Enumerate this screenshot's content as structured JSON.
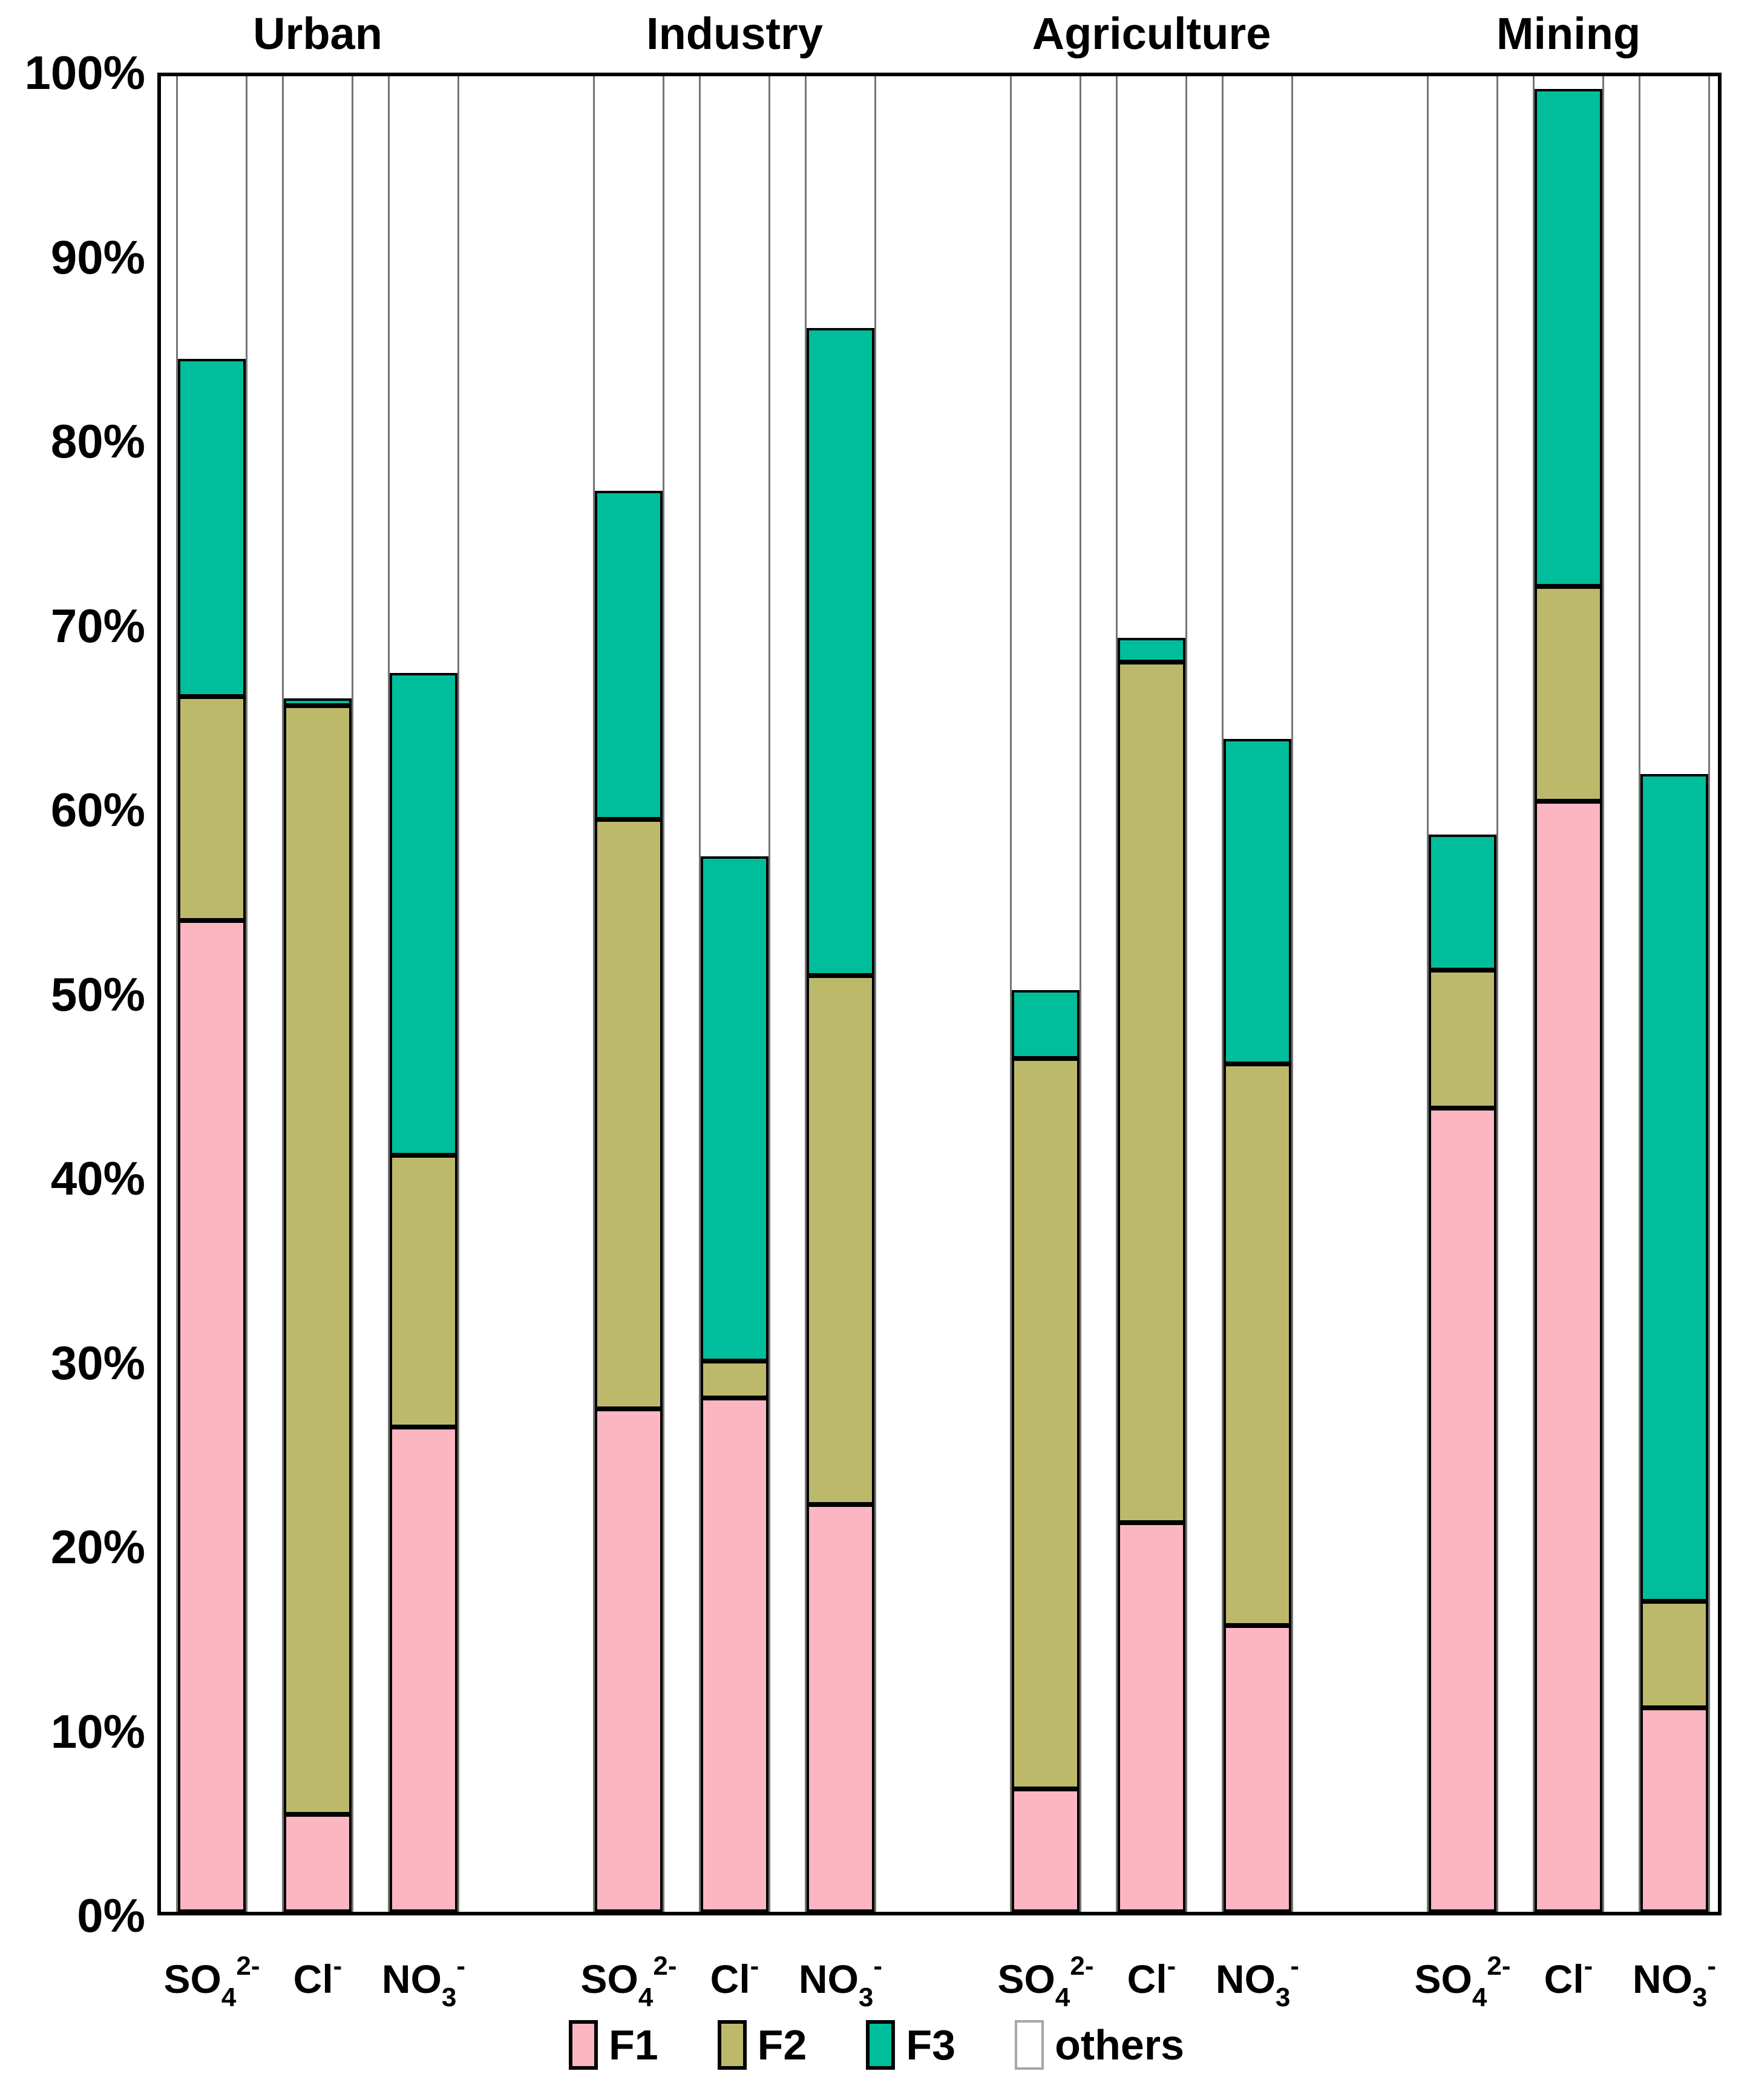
{
  "chart_data": {
    "type": "bar",
    "stacked": true,
    "unit": "%",
    "ylim": [
      0,
      100
    ],
    "grid": false,
    "legend_position": "bottom",
    "y_tick_labels": [
      "100%",
      "90%",
      "80%",
      "70%",
      "60%",
      "50%",
      "40%",
      "30%",
      "20%",
      "10%",
      "0%"
    ],
    "groups": [
      "Urban",
      "Industry",
      "Agriculture",
      "Mining"
    ],
    "x_categories": [
      {
        "main": "SO",
        "sub": "4",
        "sup": "2-"
      },
      {
        "main": "Cl",
        "sub": "",
        "sup": "-"
      },
      {
        "main": "NO",
        "sub": "3",
        "sup": "-"
      }
    ],
    "series_names": [
      "F1",
      "F2",
      "F3",
      "others"
    ],
    "series_colors": {
      "F1": "#FBB6C2",
      "F2": "#BDB96B",
      "F3": "#00BE9B",
      "others": "#FFFFFF"
    },
    "bars": [
      {
        "group": "Urban",
        "ion": "SO4 2-",
        "F1": 54.0,
        "F2": 12.2,
        "F3": 18.4,
        "others": 15.4
      },
      {
        "group": "Urban",
        "ion": "Cl-",
        "F1": 5.3,
        "F2": 60.4,
        "F3": 0.4,
        "others": 33.9
      },
      {
        "group": "Urban",
        "ion": "NO3 -",
        "F1": 26.4,
        "F2": 14.8,
        "F3": 26.3,
        "others": 32.5
      },
      {
        "group": "Industry",
        "ion": "SO4 2-",
        "F1": 27.4,
        "F2": 32.1,
        "F3": 17.9,
        "others": 22.6
      },
      {
        "group": "Industry",
        "ion": "Cl-",
        "F1": 28.0,
        "F2": 2.0,
        "F3": 27.5,
        "others": 42.5
      },
      {
        "group": "Industry",
        "ion": "NO3 -",
        "F1": 22.2,
        "F2": 28.8,
        "F3": 35.3,
        "others": 13.7
      },
      {
        "group": "Agriculture",
        "ion": "SO4 2-",
        "F1": 6.7,
        "F2": 39.8,
        "F3": 3.7,
        "others": 49.8
      },
      {
        "group": "Agriculture",
        "ion": "Cl-",
        "F1": 21.2,
        "F2": 46.9,
        "F3": 1.3,
        "others": 30.6
      },
      {
        "group": "Agriculture",
        "ion": "NO3 -",
        "F1": 15.6,
        "F2": 30.6,
        "F3": 17.7,
        "others": 36.1
      },
      {
        "group": "Mining",
        "ion": "SO4 2-",
        "F1": 43.8,
        "F2": 7.5,
        "F3": 7.4,
        "others": 41.3
      },
      {
        "group": "Mining",
        "ion": "Cl-",
        "F1": 60.5,
        "F2": 11.7,
        "F3": 27.1,
        "others": 0.7
      },
      {
        "group": "Mining",
        "ion": "NO3 -",
        "F1": 11.1,
        "F2": 5.8,
        "F3": 45.1,
        "others": 38.0
      }
    ]
  }
}
